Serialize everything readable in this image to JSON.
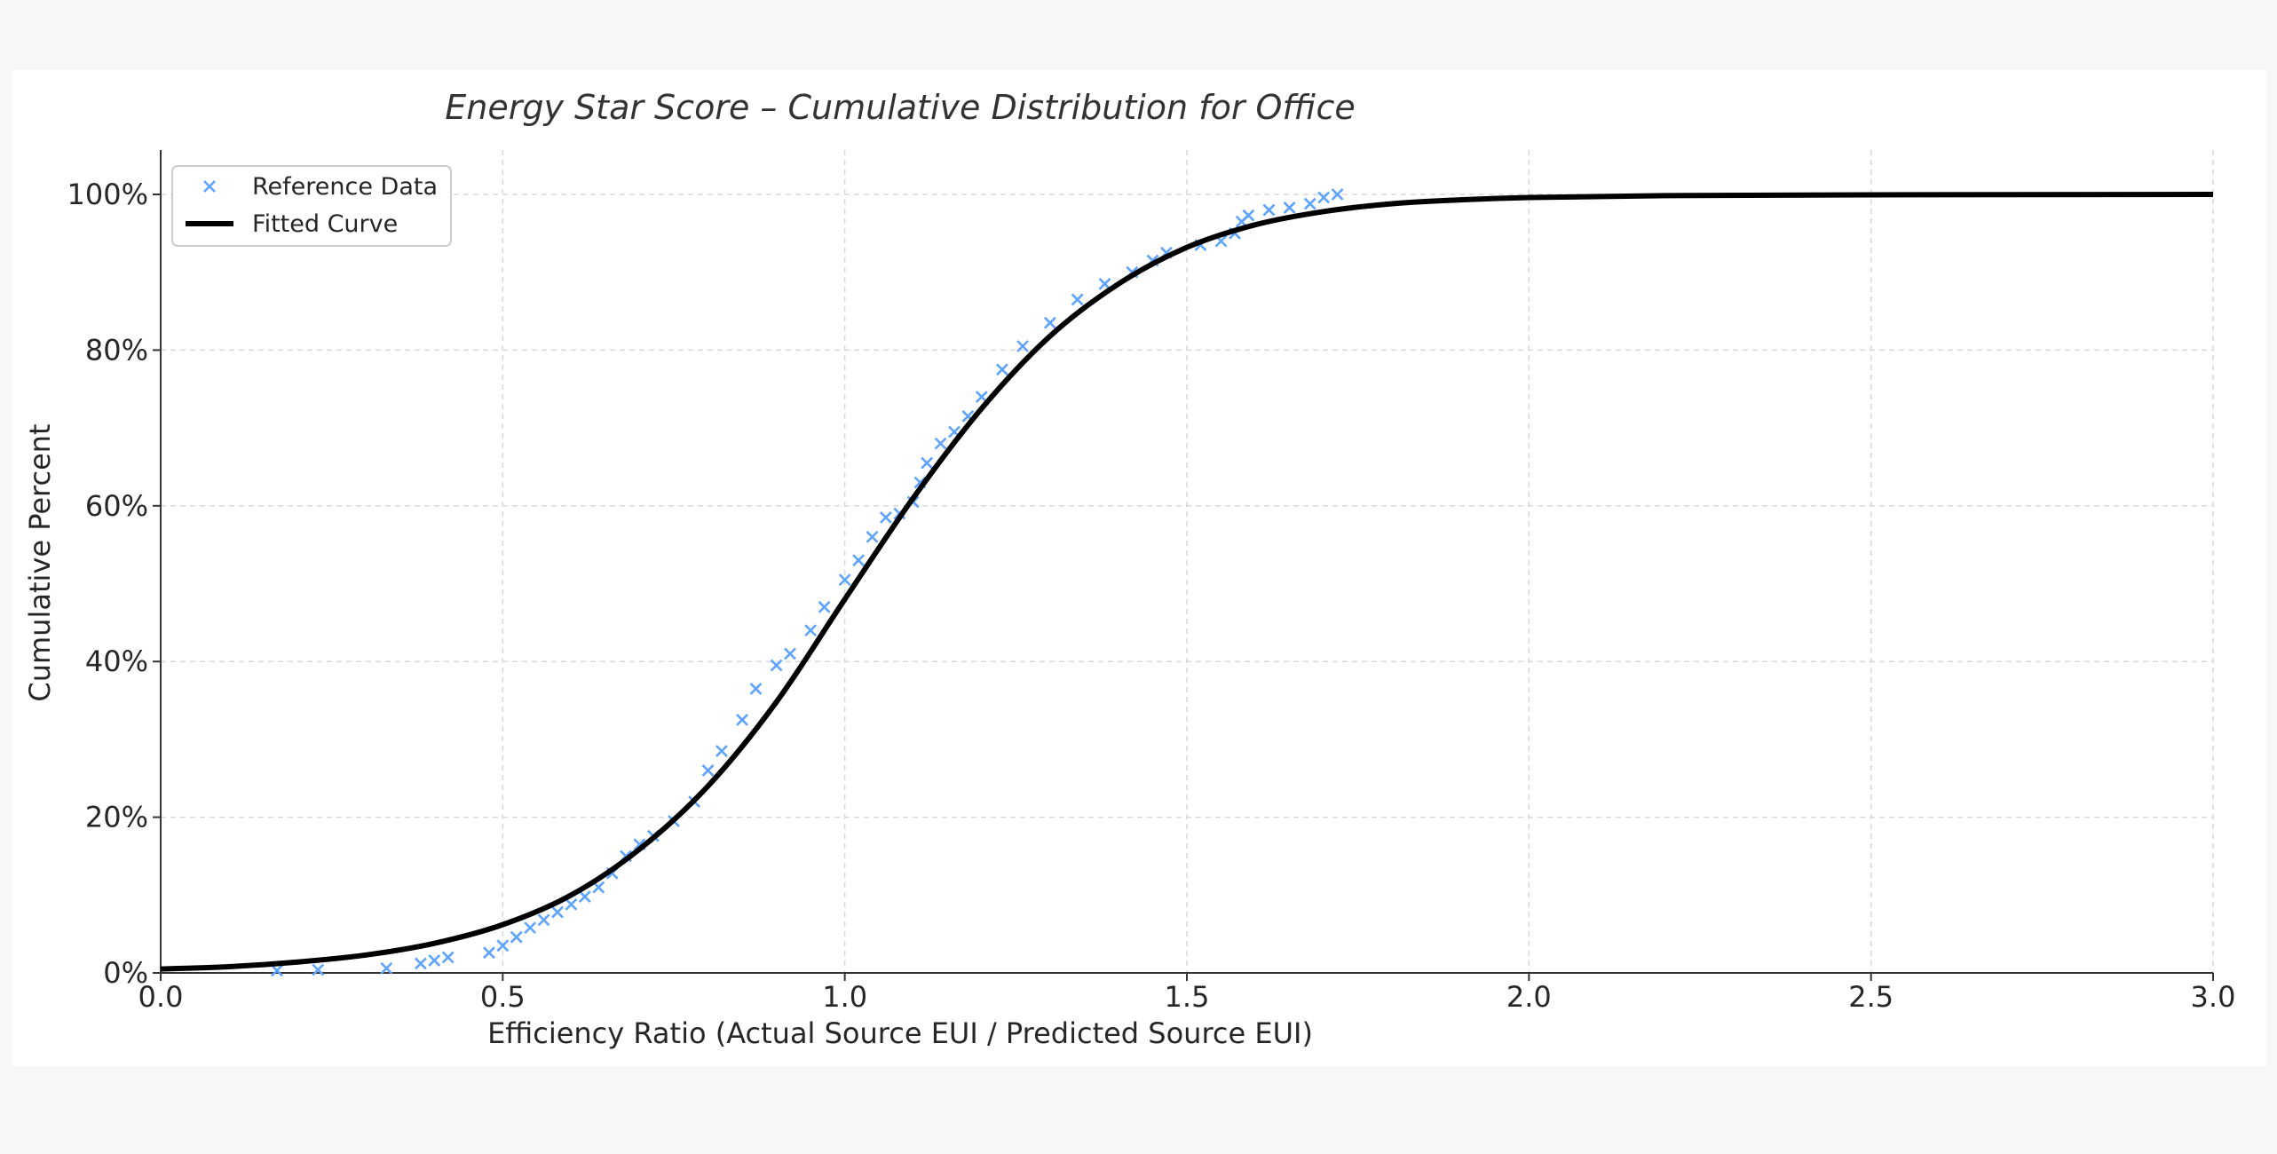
{
  "chart_data": {
    "type": "line",
    "title": "Energy Star Score – Cumulative Distribution for Office",
    "xlabel": "Efficiency Ratio (Actual Source EUI / Predicted Source EUI)",
    "ylabel": "Cumulative Percent",
    "xlim": [
      0.0,
      3.0
    ],
    "ylim": [
      0,
      100
    ],
    "x_ticks": [
      0.0,
      0.5,
      1.0,
      1.5,
      2.0,
      2.5,
      3.0
    ],
    "x_tick_labels": [
      "0.0",
      "0.5",
      "1.0",
      "1.5",
      "2.0",
      "2.5",
      "3.0"
    ],
    "y_ticks": [
      0,
      20,
      40,
      60,
      80,
      100
    ],
    "y_tick_labels": [
      "0%",
      "20%",
      "40%",
      "60%",
      "80%",
      "100%"
    ],
    "grid": true,
    "legend_position": "top-left",
    "series": [
      {
        "name": "Reference Data",
        "kind": "scatter",
        "marker": "x",
        "color": "#5ea4ff",
        "x": [
          0.17,
          0.23,
          0.33,
          0.38,
          0.4,
          0.42,
          0.48,
          0.5,
          0.52,
          0.54,
          0.56,
          0.58,
          0.6,
          0.62,
          0.64,
          0.66,
          0.68,
          0.7,
          0.72,
          0.75,
          0.78,
          0.8,
          0.82,
          0.85,
          0.87,
          0.9,
          0.92,
          0.95,
          0.97,
          1.0,
          1.02,
          1.04,
          1.06,
          1.08,
          1.1,
          1.11,
          1.12,
          1.14,
          1.16,
          1.18,
          1.2,
          1.23,
          1.26,
          1.3,
          1.34,
          1.38,
          1.42,
          1.45,
          1.47,
          1.52,
          1.55,
          1.57,
          1.58,
          1.59,
          1.62,
          1.65,
          1.68,
          1.7,
          1.72
        ],
        "y": [
          0.3,
          0.4,
          0.6,
          1.2,
          1.6,
          2.0,
          2.6,
          3.5,
          4.6,
          5.8,
          6.8,
          7.8,
          8.8,
          9.8,
          11.0,
          12.8,
          15.0,
          16.5,
          17.6,
          19.5,
          22.0,
          26.0,
          28.5,
          32.5,
          36.5,
          39.5,
          41.0,
          44.0,
          47.0,
          50.5,
          53.0,
          56.0,
          58.5,
          59.0,
          60.5,
          63.0,
          65.5,
          68.0,
          69.5,
          71.5,
          74.0,
          77.5,
          80.5,
          83.5,
          86.5,
          88.5,
          90.0,
          91.5,
          92.5,
          93.5,
          94.0,
          95.0,
          96.5,
          97.3,
          98.0,
          98.3,
          98.8,
          99.6,
          100.0
        ]
      },
      {
        "name": "Fitted Curve",
        "kind": "line",
        "color": "#000000",
        "x": [
          0.0,
          0.1,
          0.2,
          0.3,
          0.4,
          0.5,
          0.6,
          0.7,
          0.8,
          0.9,
          1.0,
          1.1,
          1.2,
          1.3,
          1.4,
          1.5,
          1.6,
          1.7,
          1.8,
          1.9,
          2.0,
          2.2,
          2.5,
          3.0
        ],
        "y": [
          0.5,
          0.8,
          1.4,
          2.3,
          3.8,
          6.2,
          10.0,
          15.9,
          24.0,
          34.8,
          48.0,
          61.0,
          72.5,
          81.8,
          88.5,
          93.2,
          96.1,
          97.8,
          98.8,
          99.3,
          99.6,
          99.85,
          99.95,
          100.0
        ]
      }
    ]
  }
}
